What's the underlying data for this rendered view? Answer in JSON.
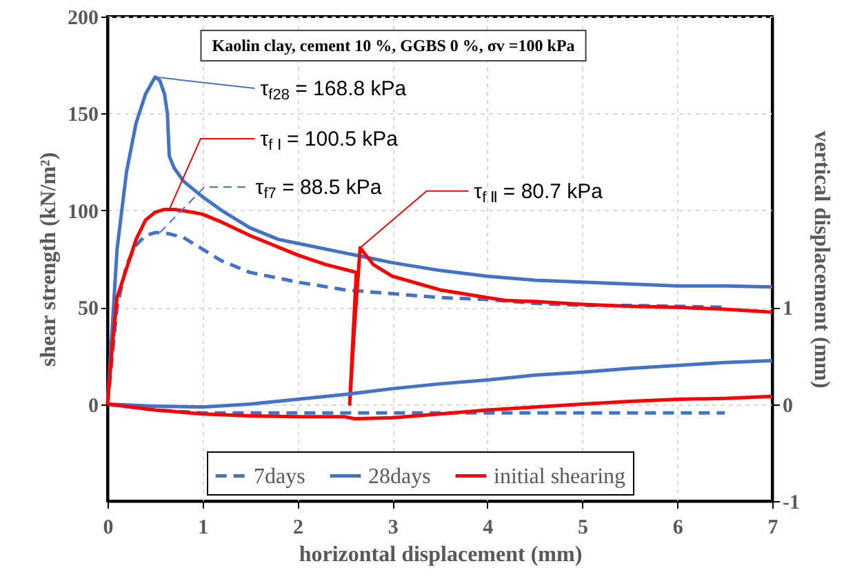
{
  "chart_data": {
    "type": "line",
    "title": "Kaolin clay, cement 10 %, GGBS 0 %, σv =100 kPa",
    "xlabel": "horizontal displacement  (mm)",
    "ylabel": "shear strength (kN/m²)",
    "y2label": "vertical displacement  (mm)",
    "xlim": [
      0,
      7
    ],
    "xticks": [
      0,
      1,
      2,
      3,
      4,
      5,
      6,
      7
    ],
    "ylim": [
      -50,
      200
    ],
    "yticks": [
      0,
      50,
      100,
      150,
      200
    ],
    "y2lim": [
      -1,
      4
    ],
    "y2ticks": [
      -1,
      0,
      1
    ],
    "grid": true,
    "legend": "bottom",
    "marker": "none",
    "annotations": [
      {
        "text": "τ$_{f28}$ = 168.8 kPa",
        "x": 0.5,
        "y": 168.8
      },
      {
        "text": "τ$_{f Ⅰ}$ = 100.5 kPa",
        "x": 0.65,
        "y": 100.5
      },
      {
        "text": "τ$_{f7}$ = 88.5 kPa",
        "x": 0.55,
        "y": 88.5
      },
      {
        "text": "τ$_{f Ⅱ}$ = 80.7 kPa",
        "x": 2.66,
        "y": 80.7
      }
    ],
    "series": [
      {
        "name": "7days",
        "color": "#4472c4",
        "line_style": "dashed",
        "x": [
          0,
          0.1,
          0.2,
          0.3,
          0.4,
          0.5,
          0.6,
          0.8,
          1.0,
          1.2,
          1.5,
          2.0,
          2.5,
          3.0,
          3.5,
          4.0,
          4.5,
          5.0,
          5.5,
          6.0,
          6.5
        ],
        "values": [
          0,
          50,
          72,
          82,
          87,
          88.5,
          88.5,
          86,
          80,
          74,
          68,
          63,
          59,
          57,
          55,
          54,
          52,
          51,
          51,
          50.5,
          50
        ]
      },
      {
        "name": "28days",
        "color": "#4472c4",
        "line_style": "solid",
        "x": [
          0,
          0.05,
          0.1,
          0.2,
          0.3,
          0.4,
          0.5,
          0.55,
          0.6,
          0.63,
          0.65,
          0.7,
          0.8,
          1.0,
          1.2,
          1.5,
          1.8,
          2.0,
          2.5,
          2.8,
          3.0,
          3.5,
          4.0,
          4.5,
          5.0,
          5.5,
          6.0,
          6.5,
          7.0
        ],
        "values": [
          0,
          40,
          80,
          120,
          145,
          160,
          168.8,
          167,
          160,
          150,
          128,
          122,
          115,
          107,
          100,
          91,
          85,
          83,
          78,
          75,
          73,
          69,
          66,
          64,
          63,
          62,
          61,
          61,
          60.5
        ]
      },
      {
        "name": "initial shearing",
        "color": "#ff0000",
        "line_style": "solid",
        "x": [
          0,
          0.05,
          0.1,
          0.2,
          0.3,
          0.4,
          0.5,
          0.6,
          0.7,
          0.9,
          1.0,
          1.2,
          1.5,
          2.0,
          2.3,
          2.62,
          2.58,
          2.55,
          2.6,
          2.66,
          2.8,
          3.0,
          3.5,
          4.0,
          4.2,
          4.5,
          5.0,
          5.5,
          6.0,
          6.5,
          7.0
        ],
        "values": [
          0,
          30,
          55,
          70,
          85,
          95,
          99,
          100.5,
          100.5,
          99,
          98,
          94,
          87,
          77,
          72,
          68,
          30,
          0,
          40,
          80.7,
          72,
          66,
          59,
          55,
          53.5,
          53,
          51.5,
          50.5,
          50,
          49,
          47.5
        ]
      },
      {
        "color": "#4472c4",
        "line_style": "dashed",
        "axis": "y2",
        "x": [
          0,
          0.5,
          1.0,
          1.5,
          6.5
        ],
        "values": [
          0,
          -0.06,
          -0.09,
          -0.09,
          -0.09
        ]
      },
      {
        "color": "#4472c4",
        "line_style": "solid",
        "axis": "y2",
        "x": [
          0,
          0.5,
          1.0,
          1.5,
          2.0,
          2.5,
          3.0,
          3.5,
          4.0,
          4.5,
          5.0,
          5.5,
          6.0,
          6.5,
          7.0
        ],
        "values": [
          0,
          -0.02,
          -0.03,
          0,
          0.05,
          0.1,
          0.16,
          0.21,
          0.25,
          0.3,
          0.33,
          0.37,
          0.4,
          0.43,
          0.45
        ]
      },
      {
        "color": "#ff0000",
        "line_style": "solid",
        "axis": "y2",
        "x": [
          0,
          0.5,
          1.0,
          1.5,
          2.0,
          2.5,
          2.6,
          3.0,
          3.5,
          4.0,
          4.5,
          5.0,
          5.5,
          6.0,
          6.5,
          7.0
        ],
        "values": [
          0,
          -0.06,
          -0.1,
          -0.12,
          -0.13,
          -0.13,
          -0.15,
          -0.14,
          -0.1,
          -0.06,
          -0.03,
          0,
          0.03,
          0.05,
          0.06,
          0.08
        ]
      }
    ]
  }
}
